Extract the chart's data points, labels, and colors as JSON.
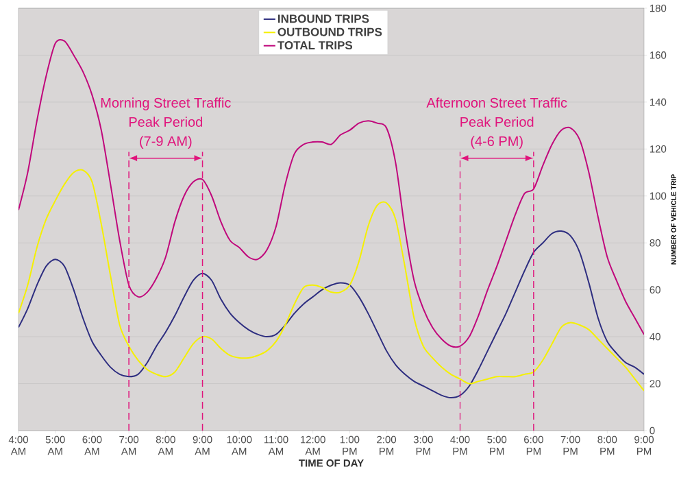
{
  "chart_data": {
    "type": "line",
    "xlabel": "TIME OF DAY",
    "ylabel": "NUMBER OF VEHICLE TRIP",
    "x": [
      4,
      4.25,
      4.5,
      4.75,
      5,
      5.25,
      5.5,
      5.75,
      6,
      6.25,
      6.5,
      6.75,
      7,
      7.25,
      7.5,
      7.75,
      8,
      8.25,
      8.5,
      8.75,
      9,
      9.25,
      9.5,
      9.75,
      10,
      10.25,
      10.5,
      10.75,
      11,
      11.25,
      11.5,
      11.75,
      12,
      12.25,
      12.5,
      12.75,
      13,
      13.25,
      13.5,
      13.75,
      14,
      14.25,
      14.5,
      14.75,
      15,
      15.25,
      15.5,
      15.75,
      16,
      16.25,
      16.5,
      16.75,
      17,
      17.25,
      17.5,
      17.75,
      18,
      18.25,
      18.5,
      18.75,
      19,
      19.25,
      19.5,
      19.75,
      20,
      20.25,
      20.5,
      20.75,
      21
    ],
    "series": [
      {
        "name": "INBOUND TRIPS",
        "color": "#2e2e80",
        "values": [
          44,
          52,
          62,
          70,
          73,
          70,
          60,
          48,
          38,
          32,
          27,
          24,
          23,
          24,
          29,
          36,
          42,
          49,
          57,
          64,
          67,
          64,
          56,
          50,
          46,
          43,
          41,
          40,
          41,
          45,
          50,
          54,
          57,
          60,
          62,
          63,
          62,
          57,
          50,
          42,
          34,
          28,
          24,
          21,
          19,
          17,
          15,
          14,
          15,
          19,
          26,
          34,
          42,
          50,
          59,
          68,
          76,
          80,
          84,
          85,
          83,
          76,
          63,
          48,
          38,
          33,
          29,
          27,
          24
        ]
      },
      {
        "name": "OUTBOUND TRIPS",
        "color": "#f5f000",
        "values": [
          50,
          62,
          78,
          90,
          98,
          105,
          110,
          111,
          106,
          88,
          66,
          45,
          36,
          30,
          26,
          24,
          23,
          25,
          31,
          37,
          40,
          39,
          35,
          32,
          31,
          31,
          32,
          34,
          38,
          45,
          54,
          61,
          62,
          61,
          59,
          59,
          62,
          72,
          87,
          96,
          97,
          90,
          70,
          48,
          36,
          31,
          27,
          24,
          22,
          20,
          21,
          22,
          23,
          23,
          23,
          24,
          25,
          30,
          37,
          44,
          46,
          45,
          43,
          39,
          35,
          31,
          27,
          22,
          17
        ]
      },
      {
        "name": "TOTAL TRIPS",
        "color": "#c0087c",
        "values": [
          94,
          110,
          132,
          151,
          165,
          166,
          160,
          153,
          143,
          128,
          105,
          81,
          62,
          57,
          59,
          65,
          74,
          89,
          100,
          106,
          107,
          100,
          89,
          81,
          78,
          74,
          73,
          77,
          87,
          105,
          118,
          122,
          123,
          123,
          122,
          126,
          128,
          131,
          132,
          131,
          129,
          114,
          86,
          64,
          52,
          44,
          39,
          36,
          36,
          40,
          49,
          60,
          70,
          81,
          92,
          101,
          103,
          113,
          122,
          128,
          129,
          124,
          110,
          91,
          74,
          64,
          55,
          48,
          41
        ]
      }
    ],
    "xlim": [
      4,
      21
    ],
    "ylim": [
      0,
      180
    ],
    "xticks": [
      {
        "value": 4,
        "label": "4:00 AM"
      },
      {
        "value": 5,
        "label": "5:00 AM"
      },
      {
        "value": 6,
        "label": "6:00 AM"
      },
      {
        "value": 7,
        "label": "7:00 AM"
      },
      {
        "value": 8,
        "label": "8:00 AM"
      },
      {
        "value": 9,
        "label": "9:00 AM"
      },
      {
        "value": 10,
        "label": "10:00 AM"
      },
      {
        "value": 11,
        "label": "11:00 AM"
      },
      {
        "value": 12,
        "label": "12:00 AM"
      },
      {
        "value": 13,
        "label": "1:00 PM"
      },
      {
        "value": 14,
        "label": "2:00 PM"
      },
      {
        "value": 15,
        "label": "3:00 PM"
      },
      {
        "value": 16,
        "label": "4:00 PM"
      },
      {
        "value": 17,
        "label": "5:00 PM"
      },
      {
        "value": 18,
        "label": "6:00 PM"
      },
      {
        "value": 19,
        "label": "7:00 PM"
      },
      {
        "value": 20,
        "label": "8:00 PM"
      },
      {
        "value": 21,
        "label": "9:00 PM"
      }
    ],
    "yticks": [
      0,
      20,
      40,
      60,
      80,
      100,
      120,
      140,
      160,
      180
    ],
    "ref_lines": [
      {
        "axis": "x",
        "value": 7,
        "color": "#e0147c",
        "line_style": "dashed"
      },
      {
        "axis": "x",
        "value": 9,
        "color": "#e0147c",
        "line_style": "dashed"
      },
      {
        "axis": "x",
        "value": 16,
        "color": "#e0147c",
        "line_style": "dashed"
      },
      {
        "axis": "x",
        "value": 18,
        "color": "#e0147c",
        "line_style": "dashed"
      }
    ],
    "annotations": [
      "Morning Street Traffic",
      "Peak Period",
      "(7-9 AM)",
      "Afternoon Street Traffic",
      "Peak Period",
      "(4-6 PM)"
    ],
    "grid": "y",
    "legend": "top",
    "marker": "none",
    "line_style": "solid"
  }
}
